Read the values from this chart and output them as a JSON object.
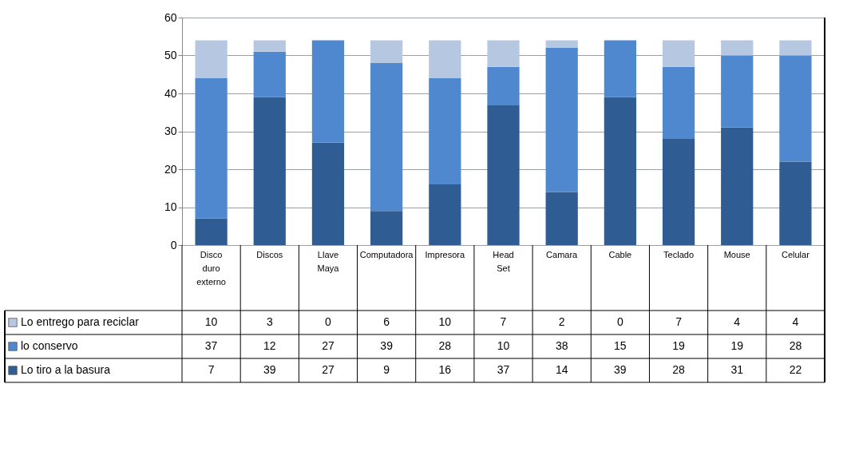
{
  "chart_data": {
    "type": "bar",
    "stacked": true,
    "categories": [
      "Disco duro externo",
      "Discos",
      "Llave Maya",
      "Computadora",
      "Impresora",
      "Head Set",
      "Camara",
      "Cable",
      "Teclado",
      "Mouse",
      "Celular"
    ],
    "series": [
      {
        "name": "Lo tiro a la basura",
        "color": "#2f5d93",
        "values": [
          7,
          39,
          27,
          9,
          16,
          37,
          14,
          39,
          28,
          31,
          22
        ]
      },
      {
        "name": "lo conservo",
        "color": "#4f88cf",
        "values": [
          37,
          12,
          27,
          39,
          28,
          10,
          38,
          15,
          19,
          19,
          28
        ]
      },
      {
        "name": "Lo entrego para reciclar",
        "color": "#b6c7e2",
        "values": [
          10,
          3,
          0,
          6,
          10,
          7,
          2,
          0,
          7,
          4,
          4
        ]
      }
    ],
    "ylim": [
      0,
      60
    ],
    "yticks": [
      0,
      10,
      20,
      30,
      40,
      50,
      60
    ],
    "grid": "y",
    "legend": "bottom left",
    "data_labels": true
  }
}
